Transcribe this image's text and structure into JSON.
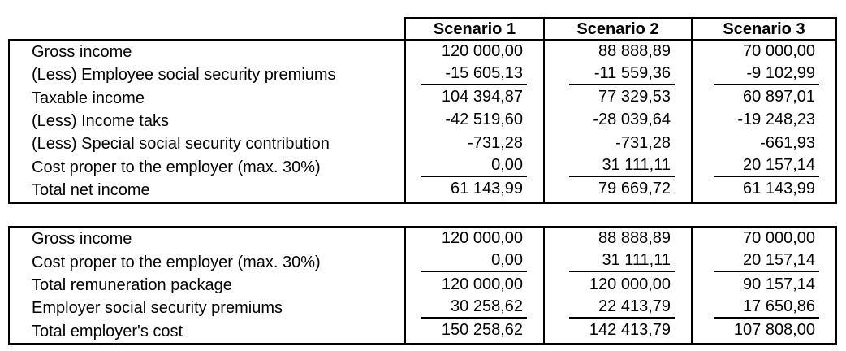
{
  "colors": {
    "background": "#ffffff",
    "text": "#000000",
    "border": "#000000"
  },
  "header": {
    "columns": [
      "Scenario 1",
      "Scenario 2",
      "Scenario 3"
    ]
  },
  "net_income_table": {
    "rows": [
      {
        "label": "Gross income",
        "values": [
          "120 000,00",
          "88 888,89",
          "70 000,00"
        ],
        "underline": false
      },
      {
        "label": "(Less) Employee social security premiums",
        "values": [
          "-15 605,13",
          "-11 559,36",
          "-9 102,99"
        ],
        "underline": true
      },
      {
        "label": "Taxable income",
        "values": [
          "104 394,87",
          "77 329,53",
          "60 897,01"
        ],
        "underline": false
      },
      {
        "label": "(Less) Income taks",
        "values": [
          "-42 519,60",
          "-28 039,64",
          "-19 248,23"
        ],
        "underline": false
      },
      {
        "label": "(Less) Special social security contribution",
        "values": [
          "-731,28",
          "-731,28",
          "-661,93"
        ],
        "underline": false
      },
      {
        "label": "Cost proper to the employer (max. 30%)",
        "values": [
          "0,00",
          "31 111,11",
          "20 157,14"
        ],
        "underline": true
      },
      {
        "label": "Total net income",
        "values": [
          "61 143,99",
          "79 669,72",
          "61 143,99"
        ],
        "underline": false
      }
    ]
  },
  "employer_cost_table": {
    "rows": [
      {
        "label": "Gross income",
        "values": [
          "120 000,00",
          "88 888,89",
          "70 000,00"
        ],
        "underline": false
      },
      {
        "label": "Cost proper to the employer (max. 30%)",
        "values": [
          "0,00",
          "31 111,11",
          "20 157,14"
        ],
        "underline": true
      },
      {
        "label": "Total remuneration package",
        "values": [
          "120 000,00",
          "120 000,00",
          "90 157,14"
        ],
        "underline": false
      },
      {
        "label": "Employer social security premiums",
        "values": [
          "30 258,62",
          "22 413,79",
          "17 650,86"
        ],
        "underline": true
      },
      {
        "label": "Total employer's cost",
        "values": [
          "150 258,62",
          "142 413,79",
          "107 808,00"
        ],
        "underline": false
      }
    ]
  }
}
